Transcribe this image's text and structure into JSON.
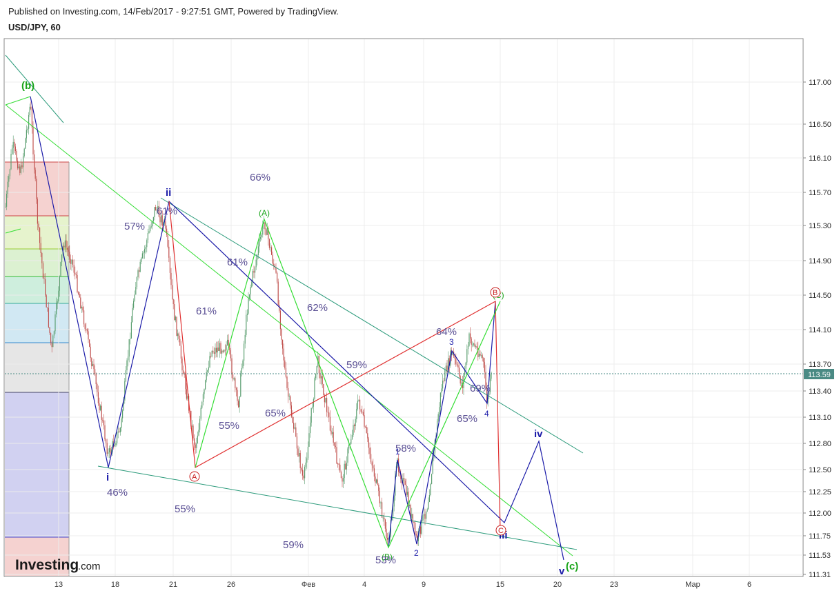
{
  "header": {
    "published": "Published on Investing.com, 14/Feb/2017 - 9:27:51 GMT, Powered by TradingView.",
    "symbol": "USD/JPY, 60"
  },
  "logo": {
    "name": "Investing",
    "suffix": ".com"
  },
  "colors": {
    "candle_up": "#5a9e6f",
    "candle_down": "#c0504d",
    "blue_wave": "#1a1aa8",
    "green_wave": "#33dd33",
    "red_wave": "#e03030",
    "channel": "#2a9a7a",
    "price_tag": "#4a8a84"
  },
  "chart_data": {
    "type": "candlestick",
    "symbol": "USD/JPY",
    "interval": "60",
    "y_ticks": [
      "117.00",
      "116.50",
      "116.10",
      "115.70",
      "115.30",
      "114.90",
      "114.50",
      "114.10",
      "113.70",
      "113.40",
      "113.10",
      "112.80",
      "112.50",
      "112.25",
      "112.00",
      "111.75",
      "111.53",
      "111.31"
    ],
    "x_ticks": [
      "13",
      "18",
      "21",
      "26",
      "Фев",
      "4",
      "9",
      "15",
      "20",
      "23",
      "Мар",
      "6"
    ],
    "current_price": "113.59",
    "wave_labels": {
      "b_paren": "(b)",
      "i": "i",
      "ii": "ii",
      "iii": "iii",
      "iv": "iv",
      "v": "v",
      "c_paren": "(c)",
      "A_paren": "(A)",
      "B_paren": "(B)",
      "C_paren": "(C)",
      "A_circle": "A",
      "B_circle": "B",
      "C_circle": "C",
      "one": "1",
      "two": "2",
      "three": "3",
      "four": "4"
    },
    "percent_labels": [
      "66%",
      "57%",
      "61%",
      "61%",
      "61%",
      "62%",
      "64%",
      "59%",
      "69%",
      "65%",
      "55%",
      "65%",
      "58%",
      "46%",
      "55%",
      "59%",
      "53%"
    ]
  }
}
